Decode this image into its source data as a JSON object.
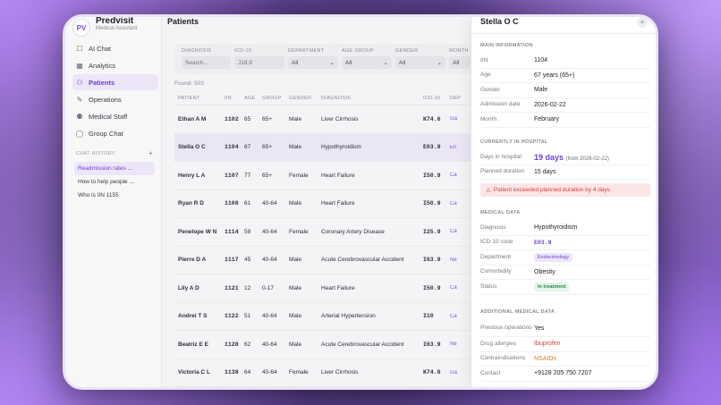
{
  "brand": {
    "name": "Predvisit",
    "subtitle": "Medical Assistant",
    "logo_text": "PV"
  },
  "nav": [
    {
      "icon": "chat-bubble-icon",
      "glyph": "☐",
      "label": "AI Chat",
      "active": false
    },
    {
      "icon": "grid-icon",
      "glyph": "▦",
      "label": "Analytics",
      "active": false
    },
    {
      "icon": "user-icon",
      "glyph": "⚇",
      "label": "Patients",
      "active": true
    },
    {
      "icon": "tool-icon",
      "glyph": "✎",
      "label": "Operations",
      "active": false
    },
    {
      "icon": "user-plus-icon",
      "glyph": "⚉",
      "label": "Medical Staff",
      "active": false
    },
    {
      "icon": "message-icon",
      "glyph": "◯",
      "label": "Group Chat",
      "active": false
    }
  ],
  "chat_history": {
    "label": "CHAT HISTORY",
    "add": "+",
    "items": [
      {
        "label": "Readmission rates ...",
        "active": true
      },
      {
        "label": "How to help people ...",
        "active": false
      },
      {
        "label": "Who is IIN 1155",
        "active": false
      }
    ]
  },
  "main": {
    "title": "Patients",
    "filters": {
      "diagnosis": {
        "label": "DIAGNOSIS",
        "placeholder": "Search..."
      },
      "icd10": {
        "label": "ICD-10",
        "placeholder": "J18.9"
      },
      "department": {
        "label": "DEPARTMENT",
        "value": "All"
      },
      "age_group": {
        "label": "AGE GROUP",
        "value": "All"
      },
      "gender": {
        "label": "GENDER",
        "value": "All"
      },
      "month": {
        "label": "MONTH",
        "value": "All"
      }
    },
    "found": "Found: 503",
    "columns": [
      "PATIENT",
      "IIN",
      "AGE",
      "GROUP",
      "GENDER",
      "DIAGNOSIS",
      "ICD-10",
      "DEP"
    ],
    "rows": [
      {
        "patient": "Ethan A M",
        "iin": "1102",
        "age": "65",
        "group": "65+",
        "gender": "Male",
        "diagnosis": "Liver Cirrhosis",
        "icd": "K74.6",
        "dep": "Ga"
      },
      {
        "patient": "Stella O C",
        "iin": "1104",
        "age": "67",
        "group": "65+",
        "gender": "Male",
        "diagnosis": "Hypothyroidism",
        "icd": "E03.9",
        "dep": "En"
      },
      {
        "patient": "Henry L A",
        "iin": "1107",
        "age": "77",
        "group": "65+",
        "gender": "Female",
        "diagnosis": "Heart Failure",
        "icd": "I50.9",
        "dep": "Ca"
      },
      {
        "patient": "Ryan R D",
        "iin": "1108",
        "age": "61",
        "group": "40-64",
        "gender": "Male",
        "diagnosis": "Heart Failure",
        "icd": "I50.9",
        "dep": "Ca"
      },
      {
        "patient": "Penelope W N",
        "iin": "1114",
        "age": "59",
        "group": "40-64",
        "gender": "Female",
        "diagnosis": "Coronary Artery Disease",
        "icd": "I25.9",
        "dep": "Ca"
      },
      {
        "patient": "Pierre D A",
        "iin": "1117",
        "age": "45",
        "group": "40-64",
        "gender": "Male",
        "diagnosis": "Acute Cerebrovascular Accident",
        "icd": "I63.9",
        "dep": "Ne"
      },
      {
        "patient": "Lily A D",
        "iin": "1121",
        "age": "12",
        "group": "0-17",
        "gender": "Male",
        "diagnosis": "Heart Failure",
        "icd": "I50.9",
        "dep": "Ca"
      },
      {
        "patient": "Andrei T S",
        "iin": "1122",
        "age": "51",
        "group": "40-64",
        "gender": "Male",
        "diagnosis": "Arterial Hypertension",
        "icd": "I10",
        "dep": "Ca"
      },
      {
        "patient": "Beatriz E E",
        "iin": "1128",
        "age": "62",
        "group": "40-64",
        "gender": "Male",
        "diagnosis": "Acute Cerebrovascular Accident",
        "icd": "I63.9",
        "dep": "Ne"
      },
      {
        "patient": "Victoria C L",
        "iin": "1138",
        "age": "64",
        "group": "40-64",
        "gender": "Female",
        "diagnosis": "Liver Cirrhosis",
        "icd": "K74.6",
        "dep": "Ga"
      }
    ],
    "selected_row": 1
  },
  "panel": {
    "title": "Stella O C",
    "close": "×",
    "main_info": {
      "title": "MAIN INFORMATION",
      "rows": [
        {
          "key": "IIN",
          "value": "1104"
        },
        {
          "key": "Age",
          "value": "67 years (65+)"
        },
        {
          "key": "Gender",
          "value": "Male"
        },
        {
          "key": "Admission date",
          "value": "2026-02-22"
        },
        {
          "key": "Month",
          "value": "February"
        }
      ]
    },
    "hospital": {
      "title": "CURRENTLY IN HOSPITAL",
      "days_key": "Days in hospital",
      "days_value": "19 days",
      "days_note": "(from 2026-02-22)",
      "planned_key": "Planned duration",
      "planned_value": "15 days",
      "alert": "Patient exceeded planned duration by 4 days"
    },
    "medical": {
      "title": "MEDICAL DATA",
      "diagnosis_key": "Diagnosis",
      "diagnosis_value": "Hypothyroidism",
      "icd_key": "ICD-10 code",
      "icd_value": "E03.9",
      "department_key": "Department",
      "department_value": "Endocrinology",
      "comorbidity_key": "Comorbidity",
      "comorbidity_value": "Obesity",
      "status_key": "Status",
      "status_value": "In treatment"
    },
    "additional": {
      "title": "ADDITIONAL MEDICAL DATA",
      "prev_ops_key": "Previous operations",
      "prev_ops_value": "Yes",
      "allergies_key": "Drug allergies",
      "allergies_value": "Ibuprofen",
      "contra_key": "Contraindications",
      "contra_value": "NSAIDs",
      "contact_key": "Contact",
      "contact_value": "+9128 205 750 7207"
    }
  },
  "colors": {
    "accent": "#6e3fd0",
    "alert": "#d8403a",
    "warning": "#e07a15",
    "success": "#2f8a4a"
  }
}
